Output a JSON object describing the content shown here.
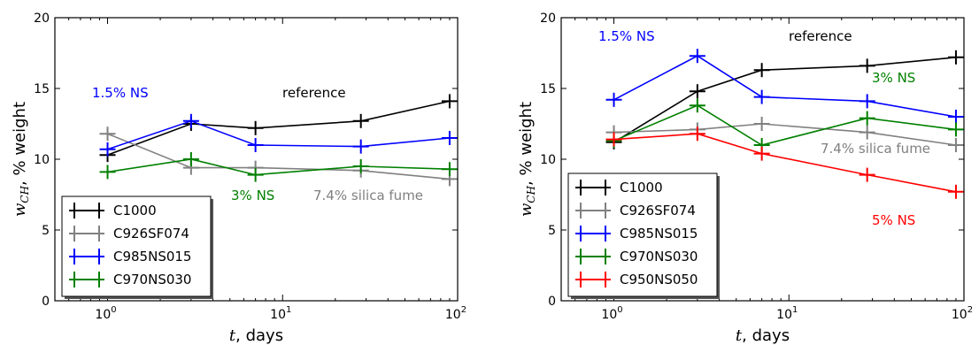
{
  "colors": {
    "C1000": "#000000",
    "C926SF074": "#808080",
    "C985NS015": "#0000ff",
    "C970NS030": "#008000",
    "C950NS050": "#ff0000"
  },
  "chart_data": [
    {
      "type": "line",
      "x_scale": "log",
      "xlim": [
        0.5,
        100
      ],
      "ylim": [
        0,
        20
      ],
      "xlabel": "t, days",
      "ylabel": "w_CH, % weight",
      "yticks": [
        0,
        5,
        10,
        15,
        20
      ],
      "xticks": [
        "10^0",
        "10^1",
        "10^2"
      ],
      "legend_position": "lower-left",
      "series": [
        {
          "name": "C1000",
          "x": [
            1,
            3,
            7,
            28,
            90
          ],
          "y": [
            10.3,
            12.5,
            12.2,
            12.7,
            14.1
          ],
          "yerr": [
            0.5,
            0.5,
            0.5,
            0.5,
            0.5
          ]
        },
        {
          "name": "C926SF074",
          "x": [
            1,
            3,
            7,
            28,
            90
          ],
          "y": [
            11.8,
            9.4,
            9.4,
            9.2,
            8.6
          ],
          "yerr": [
            0.5,
            0.5,
            0.5,
            0.5,
            0.5
          ]
        },
        {
          "name": "C985NS015",
          "x": [
            1,
            3,
            7,
            28,
            90
          ],
          "y": [
            10.7,
            12.7,
            11.0,
            10.9,
            11.5
          ],
          "yerr": [
            0.5,
            0.5,
            0.5,
            0.5,
            0.5
          ]
        },
        {
          "name": "C970NS030",
          "x": [
            1,
            3,
            7,
            28,
            90
          ],
          "y": [
            9.1,
            10.0,
            8.9,
            9.5,
            9.3
          ],
          "yerr": [
            0.5,
            0.5,
            0.5,
            0.5,
            0.5
          ]
        }
      ],
      "annotations": [
        {
          "text": "1.5% NS",
          "color": "#0000ff"
        },
        {
          "text": "reference",
          "color": "#000000"
        },
        {
          "text": "3% NS",
          "color": "#008000"
        },
        {
          "text": "7.4% silica fume",
          "color": "#808080"
        }
      ]
    },
    {
      "type": "line",
      "x_scale": "log",
      "xlim": [
        0.5,
        100
      ],
      "ylim": [
        0,
        20
      ],
      "xlabel": "t, days",
      "ylabel": "w_CH, % weight",
      "yticks": [
        0,
        5,
        10,
        15,
        20
      ],
      "xticks": [
        "10^0",
        "10^1",
        "10^2"
      ],
      "legend_position": "lower-left",
      "series": [
        {
          "name": "C1000",
          "x": [
            1,
            3,
            7,
            28,
            90
          ],
          "y": [
            11.2,
            14.8,
            16.3,
            16.6,
            17.2
          ],
          "yerr": [
            0.5,
            0.5,
            0.5,
            0.5,
            0.5
          ]
        },
        {
          "name": "C926SF074",
          "x": [
            1,
            3,
            7,
            28,
            90
          ],
          "y": [
            11.9,
            12.1,
            12.5,
            11.9,
            11.0
          ],
          "yerr": [
            0.5,
            0.5,
            0.5,
            0.5,
            0.5
          ]
        },
        {
          "name": "C985NS015",
          "x": [
            1,
            3,
            7,
            28,
            90
          ],
          "y": [
            14.2,
            17.3,
            14.4,
            14.1,
            13.0
          ],
          "yerr": [
            0.5,
            0.5,
            0.5,
            0.5,
            0.5
          ]
        },
        {
          "name": "C970NS030",
          "x": [
            1,
            3,
            7,
            28,
            90
          ],
          "y": [
            11.3,
            13.8,
            11.0,
            12.9,
            12.1
          ],
          "yerr": [
            0.5,
            0.5,
            0.5,
            0.5,
            0.5
          ]
        },
        {
          "name": "C950NS050",
          "x": [
            1,
            3,
            7,
            28,
            90
          ],
          "y": [
            11.4,
            11.8,
            10.4,
            8.9,
            7.7
          ],
          "yerr": [
            0.5,
            0.5,
            0.5,
            0.5,
            0.5
          ]
        }
      ],
      "annotations": [
        {
          "text": "1.5% NS",
          "color": "#0000ff"
        },
        {
          "text": "reference",
          "color": "#000000"
        },
        {
          "text": "3% NS",
          "color": "#008000"
        },
        {
          "text": "7.4% silica fume",
          "color": "#808080"
        },
        {
          "text": "5% NS",
          "color": "#ff0000"
        }
      ]
    }
  ]
}
